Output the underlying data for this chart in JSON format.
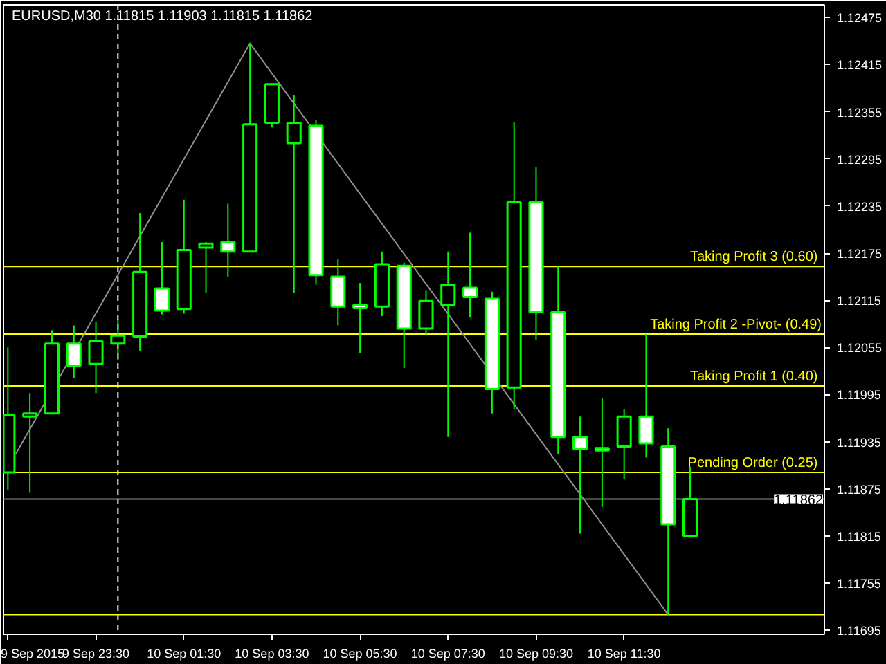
{
  "chart_data": {
    "type": "candlestick",
    "title": "EURUSD,M30  1.11815 1.11903 1.11815 1.11862",
    "x": [
      "2015-09-09T21:30",
      "2015-09-09T22:00",
      "2015-09-09T22:30",
      "2015-09-09T23:00",
      "2015-09-09T23:30",
      "2015-09-10T00:00",
      "2015-09-10T00:30",
      "2015-09-10T01:00",
      "2015-09-10T01:30",
      "2015-09-10T02:00",
      "2015-09-10T02:30",
      "2015-09-10T03:00",
      "2015-09-10T03:30",
      "2015-09-10T04:00",
      "2015-09-10T04:30",
      "2015-09-10T05:00",
      "2015-09-10T05:30",
      "2015-09-10T06:00",
      "2015-09-10T06:30",
      "2015-09-10T07:00",
      "2015-09-10T07:30",
      "2015-09-10T08:00",
      "2015-09-10T08:30",
      "2015-09-10T09:00",
      "2015-09-10T09:30",
      "2015-09-10T10:00",
      "2015-09-10T10:30",
      "2015-09-10T11:00",
      "2015-09-10T11:30",
      "2015-09-10T12:00",
      "2015-09-10T12:30",
      "2015-09-10T13:00"
    ],
    "ohlc": [
      [
        1.11896,
        1.12055,
        1.11873,
        1.11969
      ],
      [
        1.11967,
        1.11997,
        1.1187,
        1.11971
      ],
      [
        1.11971,
        1.12077,
        1.11971,
        1.1206
      ],
      [
        1.1206,
        1.12083,
        1.12016,
        1.12032
      ],
      [
        1.12034,
        1.12088,
        1.11997,
        1.12063
      ],
      [
        1.1206,
        1.1209,
        1.12039,
        1.1207
      ],
      [
        1.12069,
        1.12226,
        1.12051,
        1.12151
      ],
      [
        1.1213,
        1.12189,
        1.12097,
        1.12102
      ],
      [
        1.12104,
        1.12243,
        1.12098,
        1.12179
      ],
      [
        1.12182,
        1.12189,
        1.12124,
        1.12187
      ],
      [
        1.12189,
        1.12238,
        1.12145,
        1.12177
      ],
      [
        1.12177,
        1.12442,
        1.12177,
        1.12339
      ],
      [
        1.12341,
        1.1239,
        1.12335,
        1.1239
      ],
      [
        1.12315,
        1.12376,
        1.12124,
        1.12341
      ],
      [
        1.12337,
        1.12344,
        1.12135,
        1.12147
      ],
      [
        1.12145,
        1.12168,
        1.12083,
        1.12107
      ],
      [
        1.12109,
        1.12137,
        1.12048,
        1.12105
      ],
      [
        1.12107,
        1.12177,
        1.12095,
        1.12161
      ],
      [
        1.12159,
        1.12163,
        1.12029,
        1.12079
      ],
      [
        1.12079,
        1.12128,
        1.1207,
        1.12114
      ],
      [
        1.12109,
        1.12177,
        1.11941,
        1.12135
      ],
      [
        1.12131,
        1.12201,
        1.12093,
        1.12119
      ],
      [
        1.12117,
        1.12126,
        1.11971,
        1.12002
      ],
      [
        1.12004,
        1.12342,
        1.11976,
        1.1224
      ],
      [
        1.1224,
        1.12285,
        1.12065,
        1.121
      ],
      [
        1.121,
        1.12158,
        1.11919,
        1.11941
      ],
      [
        1.11941,
        1.11967,
        1.11818,
        1.11926
      ],
      [
        1.11927,
        1.1199,
        1.11852,
        1.11924
      ],
      [
        1.11929,
        1.11976,
        1.11887,
        1.11967
      ],
      [
        1.11967,
        1.12072,
        1.11915,
        1.11933
      ],
      [
        1.11929,
        1.11952,
        1.11715,
        1.1183
      ],
      [
        1.11815,
        1.11903,
        1.11815,
        1.11862
      ]
    ],
    "color": "#00ff00",
    "colors": [
      "#000000",
      "#000000",
      "#000000",
      "#ffffff",
      "#000000",
      "#000000",
      "#000000",
      "#ffffff",
      "#000000",
      "#000000",
      "#ffffff",
      "#000000",
      "#000000",
      "#000000",
      "#ffffff",
      "#ffffff",
      "#ffffff",
      "#000000",
      "#ffffff",
      "#000000",
      "#000000",
      "#ffffff",
      "#ffffff",
      "#000000",
      "#ffffff",
      "#ffffff",
      "#ffffff",
      "#ffffff",
      "#000000",
      "#ffffff",
      "#ffffff",
      "#000000"
    ],
    "series": [
      {
        "type": "line",
        "color": "#909090",
        "x": [
          "2015-09-09T21:41",
          "2015-09-10T03:00",
          "2015-09-10T12:30"
        ],
        "values": [
          1.1192,
          1.12442,
          1.11715
        ]
      }
    ],
    "ref_lines": [
      {
        "axis": "y",
        "value": 1.12158,
        "label": "Taking Profit 3  (0.60)",
        "color": "#ffff00"
      },
      {
        "axis": "y",
        "value": 1.12072,
        "label": "Taking Profit 2 -Pivot- (0.49)",
        "color": "#ffff00"
      },
      {
        "axis": "y",
        "value": 1.12006,
        "label": "Taking Profit 1  (0.40)",
        "color": "#ffff00"
      },
      {
        "axis": "y",
        "value": 1.11896,
        "label": "Pending Order  (0.25)",
        "color": "#ffff00"
      },
      {
        "axis": "y",
        "value": 1.11715,
        "color": "#ffff00"
      },
      {
        "axis": "y",
        "value": 1.11862,
        "label": "1.11862",
        "color": "#909090"
      },
      {
        "axis": "x",
        "value": "2015-09-10T00:00",
        "color": "#ffffff",
        "line_style": "dashed"
      }
    ],
    "xlim": [
      "2015-09-09T21:24",
      "2015-09-10T16:03"
    ],
    "xticks": [
      {
        "value": "2015-09-09T21:30",
        "label": "9 Sep 2015"
      },
      {
        "value": "2015-09-09T23:30",
        "label": "9 Sep 23:30"
      },
      {
        "value": "2015-09-10T01:30",
        "label": "10 Sep 01:30"
      },
      {
        "value": "2015-09-10T03:30",
        "label": "10 Sep 03:30"
      },
      {
        "value": "2015-09-10T05:30",
        "label": "10 Sep 05:30"
      },
      {
        "value": "2015-09-10T07:30",
        "label": "10 Sep 07:30"
      },
      {
        "value": "2015-09-10T09:30",
        "label": "10 Sep 09:30"
      },
      {
        "value": "2015-09-10T11:30",
        "label": "10 Sep 11:30"
      }
    ],
    "ylim": [
      1.1169,
      1.12491
    ],
    "yticks": [
      1.12475,
      1.12415,
      1.12355,
      1.12295,
      1.12235,
      1.12175,
      1.12115,
      1.12055,
      1.11995,
      1.11935,
      1.11875,
      1.11815,
      1.11755,
      1.11695
    ],
    "grid": false
  }
}
